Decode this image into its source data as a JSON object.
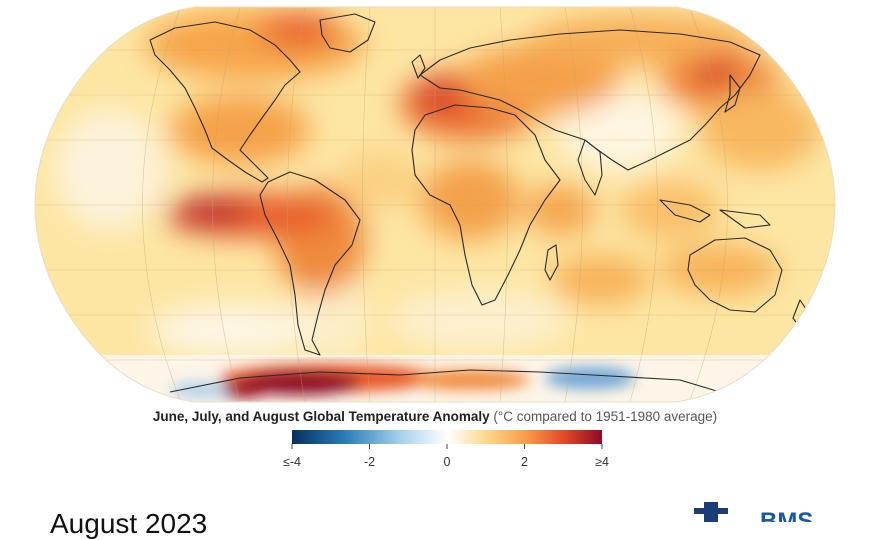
{
  "map": {
    "projection": "Robinson",
    "basemap": "global temperature anomaly, continent outlines, graticule",
    "colors": {
      "ocean_base": "#fde6a3",
      "warm_light": "#fcc56f",
      "warm_mid": "#f59a3e",
      "warm_high": "#e3502a",
      "hot": "#b11c2a",
      "very_hot": "#7a0f26",
      "cool": "#6fa6d6",
      "neutral": "#fbf5e6",
      "coast": "#2a2a2a"
    }
  },
  "caption": {
    "bold": "June, July, and August Global Temperature Anomaly",
    "light": " (°C compared to 1951-1980 average)"
  },
  "legend": {
    "min": -4,
    "max": 4,
    "ticks": [
      "≤-4",
      "-2",
      "0",
      "2",
      "≥4"
    ],
    "tick_values": [
      -4,
      -2,
      0,
      2,
      4
    ],
    "stops": [
      {
        "value": -4,
        "color": "#053061"
      },
      {
        "value": -2.6,
        "color": "#2c7fb8"
      },
      {
        "value": -1.2,
        "color": "#a6d1ec"
      },
      {
        "value": 0,
        "color": "#ffffff"
      },
      {
        "value": 1,
        "color": "#fdd98d"
      },
      {
        "value": 2,
        "color": "#f9a04a"
      },
      {
        "value": 3,
        "color": "#e24a28"
      },
      {
        "value": 4,
        "color": "#8e0a26"
      }
    ]
  },
  "footer": {
    "text": "August 2023",
    "logo": "BMS"
  }
}
